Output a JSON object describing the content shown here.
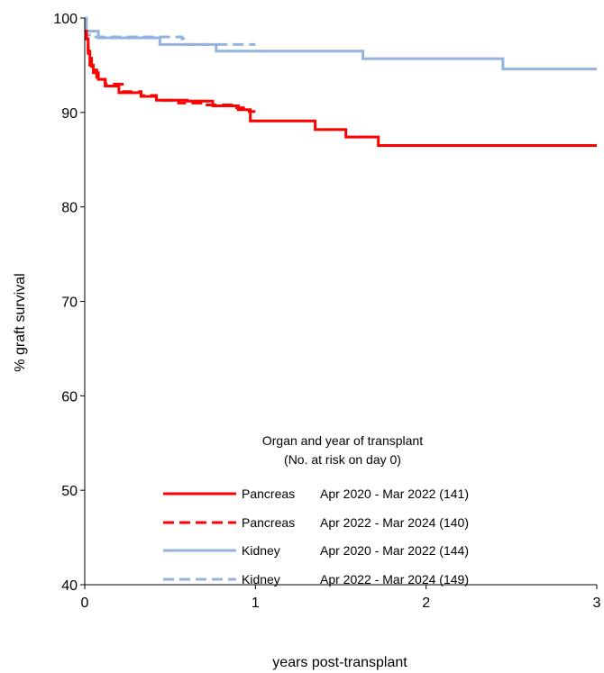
{
  "chart_data": {
    "type": "line",
    "xlabel": "years post-transplant",
    "ylabel": "% graft survival",
    "xlim": [
      0,
      3
    ],
    "ylim": [
      40,
      100
    ],
    "xticks": [
      0,
      1,
      2,
      3
    ],
    "yticks": [
      40,
      50,
      60,
      70,
      80,
      90,
      100
    ],
    "grid": false,
    "step": true,
    "legend": {
      "title_line1": "Organ and year of transplant",
      "title_line2": "(No. at risk on day 0)",
      "placement": "bottom-center"
    },
    "series": [
      {
        "name": "Pancreas Apr 2020 - Mar 2022 (141)",
        "organ": "Pancreas",
        "period": "Apr 2020 - Mar 2022 (141)",
        "color": "#ff0000",
        "dash": "solid",
        "x": [
          0,
          0.01,
          0.02,
          0.03,
          0.05,
          0.08,
          0.12,
          0.2,
          0.33,
          0.42,
          0.6,
          0.75,
          0.9,
          0.97,
          1.35,
          1.53,
          1.72,
          2.0,
          3.0
        ],
        "y": [
          98.6,
          97.8,
          96.5,
          95.0,
          94.2,
          93.5,
          92.8,
          92.1,
          91.7,
          91.3,
          91.2,
          90.7,
          90.3,
          89.1,
          88.2,
          87.4,
          86.5,
          86.5,
          86.5
        ]
      },
      {
        "name": "Pancreas Apr 2022 - Mar 2024 (140)",
        "organ": "Pancreas",
        "period": "Apr 2022 - Mar 2024 (140)",
        "color": "#ff0000",
        "dash": "dashed",
        "x": [
          0,
          0.01,
          0.02,
          0.04,
          0.07,
          0.12,
          0.22,
          0.33,
          0.42,
          0.55,
          0.7,
          0.87,
          0.93,
          1.0
        ],
        "y": [
          98.6,
          97.5,
          96.0,
          94.5,
          93.5,
          93.0,
          92.2,
          91.8,
          91.3,
          91.0,
          90.8,
          90.5,
          90.1,
          90.1
        ]
      },
      {
        "name": "Kidney Apr 2020 - Mar 2022 (144)",
        "organ": "Kidney",
        "period": "Apr 2020 - Mar 2022 (144)",
        "color": "#92b4de",
        "dash": "solid",
        "x": [
          0,
          0.01,
          0.08,
          0.44,
          0.77,
          1.63,
          2.45,
          3.0
        ],
        "y": [
          100,
          98.6,
          97.9,
          97.2,
          96.5,
          95.7,
          94.6,
          94.6
        ]
      },
      {
        "name": "Kidney Apr 2022 - Mar 2024 (149)",
        "organ": "Kidney",
        "period": "Apr 2022 - Mar 2024 (149)",
        "color": "#92b4de",
        "dash": "dashed",
        "x": [
          0,
          0.01,
          0.05,
          0.57,
          0.58,
          1.0
        ],
        "y": [
          98.7,
          98.2,
          98.0,
          97.8,
          97.2,
          97.2
        ]
      }
    ]
  }
}
